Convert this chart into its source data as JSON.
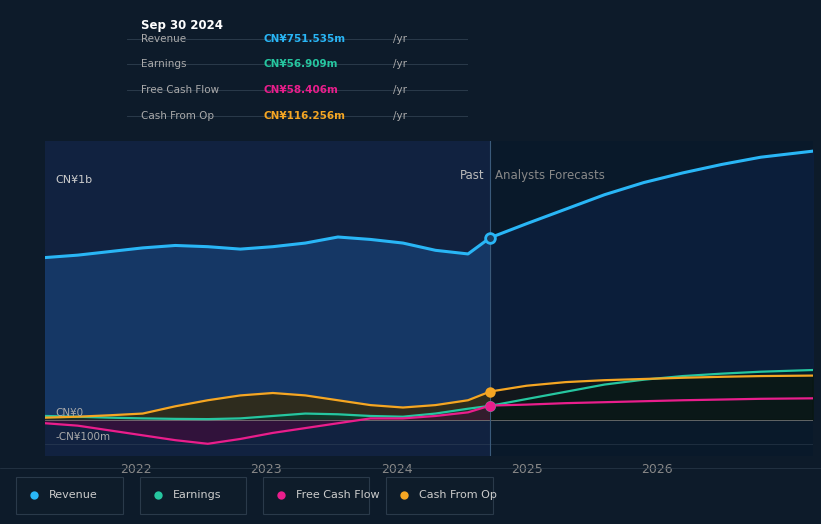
{
  "bg_color": "#0d1b2a",
  "past_bg_color": "#112240",
  "forecast_bg_color": "#091828",
  "ylabel_top": "CN¥1b",
  "ylabel_bottom": "-CN¥100m",
  "ylabel_zero": "CN¥0",
  "past_label": "Past",
  "forecast_label": "Analysts Forecasts",
  "tooltip": {
    "date": "Sep 30 2024",
    "revenue_label": "Revenue",
    "earnings_label": "Earnings",
    "fcf_label": "Free Cash Flow",
    "cashop_label": "Cash From Op",
    "revenue": "CN¥751.535m",
    "earnings": "CN¥56.909m",
    "fcf": "CN¥58.406m",
    "cashfromop": "CN¥116.256m"
  },
  "colors": {
    "revenue": "#29b6f6",
    "earnings": "#26c6a0",
    "fcf": "#e91e8c",
    "cashfromop": "#f5a623"
  },
  "legend": [
    {
      "label": "Revenue",
      "color": "#29b6f6"
    },
    {
      "label": "Earnings",
      "color": "#26c6a0"
    },
    {
      "label": "Free Cash Flow",
      "color": "#e91e8c"
    },
    {
      "label": "Cash From Op",
      "color": "#f5a623"
    }
  ],
  "x_ticks": [
    2022,
    2023,
    2024,
    2025,
    2026
  ],
  "x_min": 2021.3,
  "x_max": 2027.2,
  "y_min": -150,
  "y_max": 1150,
  "divider_x": 2024.72,
  "revenue_past_x": [
    2021.3,
    2021.55,
    2021.8,
    2022.05,
    2022.3,
    2022.55,
    2022.8,
    2023.05,
    2023.3,
    2023.55,
    2023.8,
    2024.05,
    2024.3,
    2024.55,
    2024.72
  ],
  "revenue_past_y": [
    670,
    680,
    695,
    710,
    720,
    715,
    705,
    715,
    730,
    755,
    745,
    730,
    700,
    685,
    752
  ],
  "revenue_future_x": [
    2024.72,
    2025.0,
    2025.3,
    2025.6,
    2025.9,
    2026.2,
    2026.5,
    2026.8,
    2027.2
  ],
  "revenue_future_y": [
    752,
    810,
    870,
    930,
    980,
    1020,
    1055,
    1085,
    1110
  ],
  "earnings_past_x": [
    2021.3,
    2021.55,
    2021.8,
    2022.05,
    2022.3,
    2022.55,
    2022.8,
    2023.05,
    2023.3,
    2023.55,
    2023.8,
    2024.05,
    2024.3,
    2024.55,
    2024.72
  ],
  "earnings_past_y": [
    15,
    12,
    8,
    5,
    3,
    2,
    5,
    15,
    25,
    22,
    15,
    12,
    25,
    45,
    57
  ],
  "earnings_future_x": [
    2024.72,
    2025.0,
    2025.3,
    2025.6,
    2025.9,
    2026.2,
    2026.5,
    2026.8,
    2027.2
  ],
  "earnings_future_y": [
    57,
    85,
    115,
    145,
    165,
    180,
    190,
    198,
    205
  ],
  "fcf_past_x": [
    2021.3,
    2021.55,
    2021.8,
    2022.05,
    2022.3,
    2022.55,
    2022.8,
    2023.05,
    2023.3,
    2023.55,
    2023.8,
    2024.05,
    2024.3,
    2024.55,
    2024.72
  ],
  "fcf_past_y": [
    -15,
    -25,
    -45,
    -65,
    -85,
    -100,
    -80,
    -55,
    -35,
    -15,
    5,
    5,
    15,
    30,
    58
  ],
  "fcf_future_x": [
    2024.72,
    2025.0,
    2025.3,
    2025.6,
    2025.9,
    2026.2,
    2026.5,
    2026.8,
    2027.2
  ],
  "fcf_future_y": [
    58,
    62,
    68,
    72,
    76,
    80,
    83,
    86,
    88
  ],
  "cashop_past_x": [
    2021.3,
    2021.55,
    2021.8,
    2022.05,
    2022.3,
    2022.55,
    2022.8,
    2023.05,
    2023.3,
    2023.55,
    2023.8,
    2024.05,
    2024.3,
    2024.55,
    2024.72
  ],
  "cashop_past_y": [
    8,
    12,
    18,
    25,
    55,
    80,
    100,
    110,
    100,
    80,
    60,
    50,
    60,
    80,
    116
  ],
  "cashop_future_x": [
    2024.72,
    2025.0,
    2025.3,
    2025.6,
    2025.9,
    2026.2,
    2026.5,
    2026.8,
    2027.2
  ],
  "cashop_future_y": [
    116,
    140,
    155,
    163,
    168,
    173,
    177,
    180,
    182
  ]
}
